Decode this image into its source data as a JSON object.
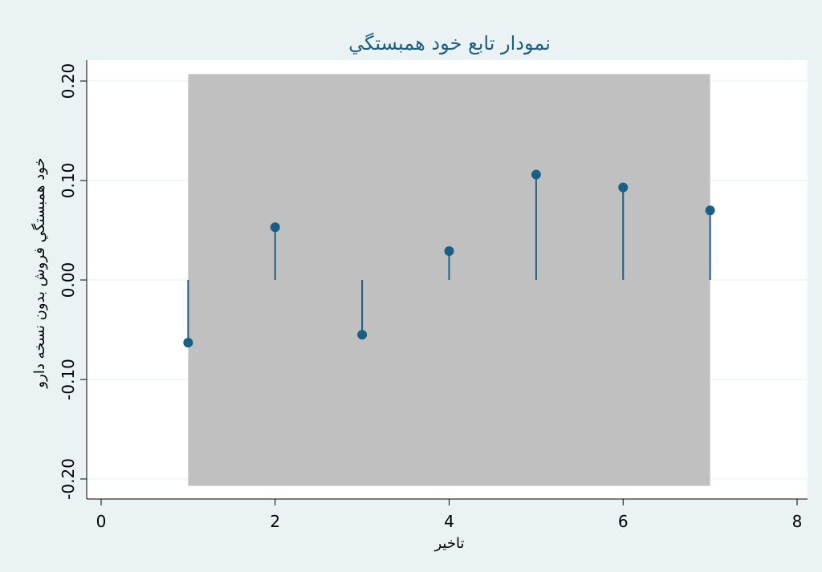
{
  "chart_data": {
    "type": "scatter",
    "subtype": "acf-stem",
    "title": "نمودار تابع خود همبستگي",
    "xlabel": "تاخير",
    "ylabel": "خود همبستگي فروش بدون نسخه دارو",
    "xlim": [
      0,
      8
    ],
    "ylim": [
      -0.2,
      0.2
    ],
    "x_ticks": [
      0,
      2,
      4,
      6,
      8
    ],
    "x_tick_labels": [
      "0",
      "2",
      "4",
      "6",
      "8"
    ],
    "y_ticks": [
      -0.2,
      -0.1,
      0,
      0.1,
      0.2
    ],
    "y_tick_labels": [
      "-0.20",
      "-0.10",
      "0.00",
      "0.10",
      "0.20"
    ],
    "grid": true,
    "confidence_band": {
      "x": [
        1,
        7
      ],
      "lower": -0.207,
      "upper": 0.207
    },
    "series": [
      {
        "x": [
          1,
          2,
          3,
          4,
          5,
          6,
          7
        ],
        "values": [
          -0.063,
          0.053,
          -0.055,
          0.029,
          0.106,
          0.093,
          0.07
        ]
      }
    ],
    "colors": {
      "outer_background": "#eaf2f3",
      "plot_background": "#ffffff",
      "grid": "#eaf2f3",
      "band": "#c0c0c0",
      "series": "#1a5f85",
      "text": "#000000"
    }
  }
}
